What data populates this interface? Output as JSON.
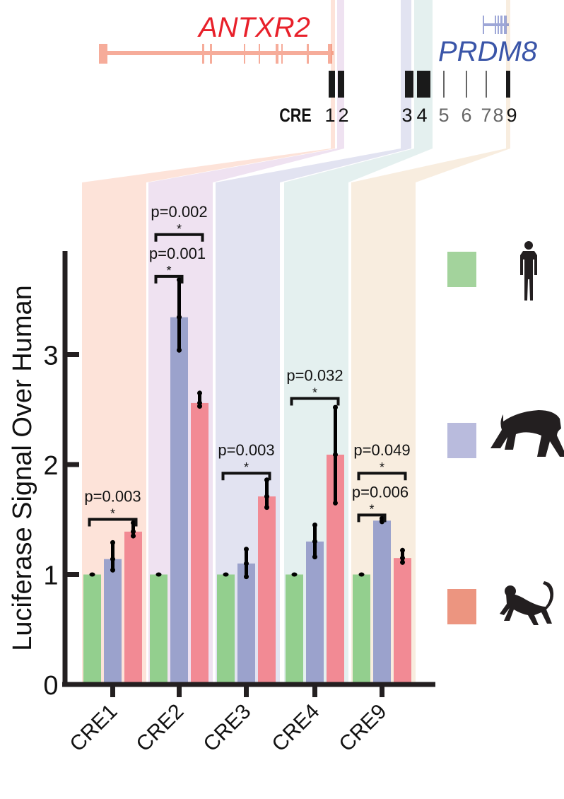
{
  "genes": {
    "gene_left": {
      "name": "ANTXR2",
      "color": "#e8202a"
    },
    "gene_right": {
      "name": "PRDM8",
      "color": "#3a55a8"
    },
    "cre_track_label": "CRE",
    "cre_numbers": [
      "1",
      "2",
      "3",
      "4",
      "5",
      "6",
      "7",
      "8",
      "9"
    ]
  },
  "legend": [
    {
      "species": "human",
      "icon": "human-silhouette-icon",
      "color": "#a3d39c"
    },
    {
      "species": "chimpanzee",
      "icon": "chimpanzee-silhouette-icon",
      "color": "#b9bbdd"
    },
    {
      "species": "macaque",
      "icon": "monkey-silhouette-icon",
      "color": "#ec9580"
    }
  ],
  "chart_data": {
    "type": "bar",
    "ylabel": "Luciferase Signal Over Human",
    "xlabel": "",
    "ylim": [
      0,
      3.85
    ],
    "yticks": [
      "0",
      "1",
      "2",
      "3"
    ],
    "categories": [
      "CRE1",
      "CRE2",
      "CRE3",
      "CRE4",
      "CRE9"
    ],
    "panel_colors": [
      "#fde3d9",
      "#efe2f1",
      "#e2e3f1",
      "#e4f0ef",
      "#f8eddf"
    ],
    "series_colors": [
      "#93cf8e",
      "#9ba2cc",
      "#f28a94"
    ],
    "series": [
      {
        "values": [
          1.0,
          1.0,
          1.0,
          1.0,
          1.0
        ],
        "err_low": [
          1.0,
          1.0,
          1.0,
          1.0,
          1.0
        ],
        "err_high": [
          1.0,
          1.0,
          1.0,
          1.0,
          1.0
        ]
      },
      {
        "values": [
          1.14,
          3.34,
          1.1,
          1.3,
          1.49
        ],
        "err_low": [
          1.04,
          3.04,
          0.98,
          1.16,
          1.48
        ],
        "err_high": [
          1.29,
          3.68,
          1.23,
          1.45,
          1.51
        ]
      },
      {
        "values": [
          1.39,
          2.56,
          1.71,
          2.09,
          1.15
        ],
        "err_low": [
          1.35,
          2.53,
          1.61,
          1.65,
          1.11
        ],
        "err_high": [
          1.47,
          2.65,
          1.86,
          2.52,
          1.22
        ]
      }
    ],
    "significance": [
      {
        "group": 0,
        "from": 0,
        "to": 2,
        "label": "p=0.003",
        "star": "*",
        "level": 1.63
      },
      {
        "group": 1,
        "from": 0,
        "to": 1,
        "label": "p=0.001",
        "star": "*",
        "level": 3.84
      },
      {
        "group": 1,
        "from": 0,
        "to": 2,
        "label": "p=0.002",
        "star": "*",
        "level": 4.22
      },
      {
        "group": 2,
        "from": 0,
        "to": 2,
        "label": "p=0.003",
        "star": "*",
        "level": 2.05
      },
      {
        "group": 3,
        "from": 0,
        "to": 2,
        "label": "p=0.032",
        "star": "*",
        "level": 2.73
      },
      {
        "group": 4,
        "from": 0,
        "to": 1,
        "label": "p=0.006",
        "star": "*",
        "level": 1.67
      },
      {
        "group": 4,
        "from": 0,
        "to": 2,
        "label": "p=0.049",
        "star": "*",
        "level": 2.05
      }
    ]
  }
}
